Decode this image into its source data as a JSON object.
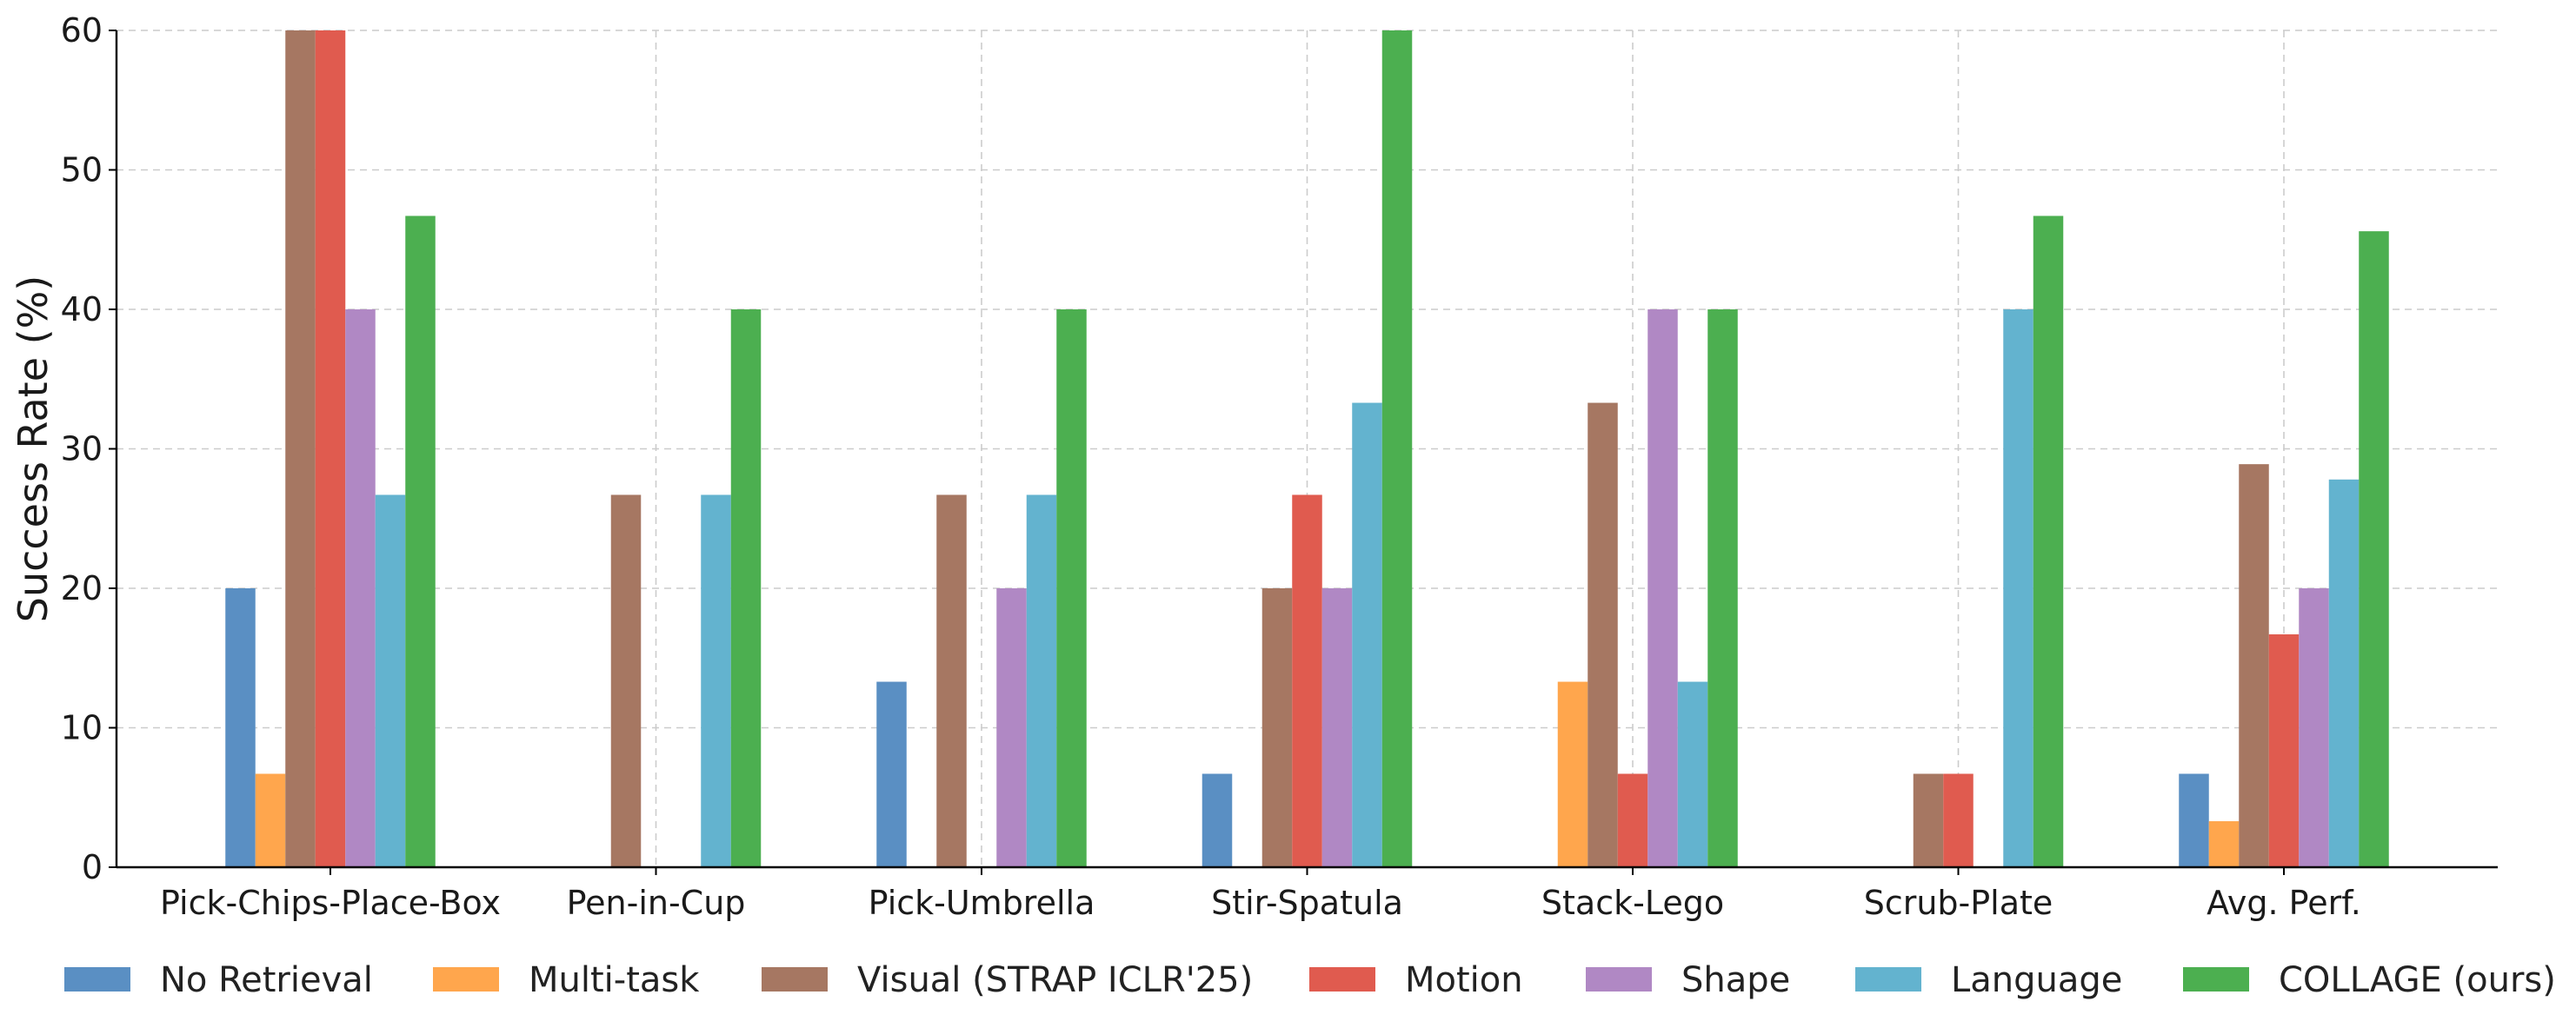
{
  "chart_data": {
    "type": "bar",
    "ylabel": "Success Rate (%)",
    "xlabel": "",
    "ylim": [
      0,
      60
    ],
    "yticks": [
      "0",
      "10",
      "20",
      "30",
      "40",
      "50",
      "60"
    ],
    "grid": true,
    "legend_position": "bottom",
    "categories": [
      "Pick-Chips-Place-Box",
      "Pen-in-Cup",
      "Pick-Umbrella",
      "Stir-Spatula",
      "Stack-Lego",
      "Scrub-Plate",
      "Avg. Perf."
    ],
    "series": [
      {
        "name": "No Retrieval",
        "color": "#5a8fc3",
        "values": [
          20,
          0,
          13.3,
          6.7,
          0,
          0,
          6.7
        ]
      },
      {
        "name": "Multi-task",
        "color": "#ffa64d",
        "values": [
          6.7,
          0,
          0,
          0,
          13.3,
          0,
          3.3
        ]
      },
      {
        "name": "Visual (STRAP ICLR'25)",
        "color": "#a67762",
        "values": [
          60,
          26.7,
          26.7,
          20,
          33.3,
          6.7,
          28.9
        ]
      },
      {
        "name": "Motion",
        "color": "#e05b4f",
        "values": [
          60,
          0,
          0,
          26.7,
          6.7,
          6.7,
          16.7
        ]
      },
      {
        "name": "Shape",
        "color": "#b088c4",
        "values": [
          40,
          0,
          20,
          20,
          40,
          0,
          20
        ]
      },
      {
        "name": "Language",
        "color": "#63b3cf",
        "values": [
          26.7,
          26.7,
          26.7,
          33.3,
          13.3,
          40,
          27.8
        ]
      },
      {
        "name": "COLLAGE (ours)",
        "color": "#4caf50",
        "values": [
          46.7,
          40,
          40,
          60,
          40,
          46.7,
          45.6
        ]
      }
    ]
  }
}
